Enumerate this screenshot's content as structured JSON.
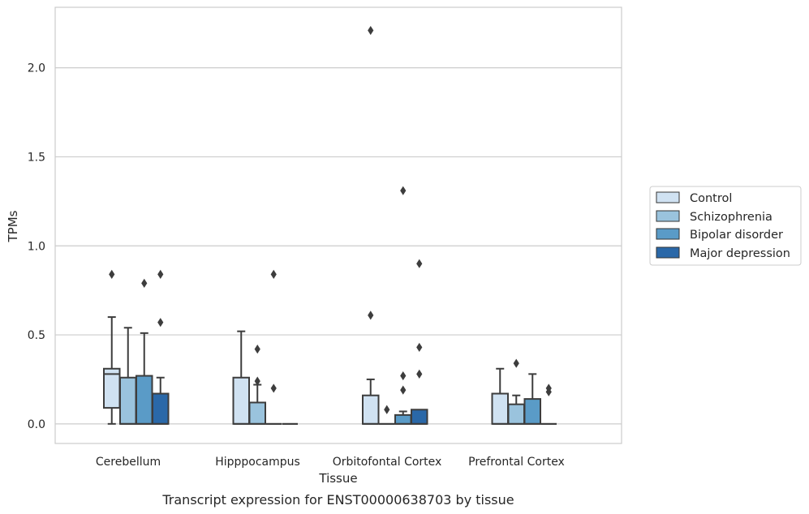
{
  "chart_data": {
    "type": "box",
    "xlabel": "Tissue",
    "ylabel": "TPMs",
    "caption": "Transcript expression for ENST00000638703 by tissue",
    "ylim": [
      -0.11,
      2.34
    ],
    "yticks": [
      0.0,
      0.5,
      1.0,
      1.5,
      2.0
    ],
    "ytick_labels": [
      "0.0",
      "0.5",
      "1.0",
      "1.5",
      "2.0"
    ],
    "grid": "horizontal",
    "legend_position": "right",
    "categories": [
      "Cerebellum",
      "Hipppocampus",
      "Orbitofontal Cortex",
      "Prefrontal Cortex"
    ],
    "series": [
      {
        "name": "Control",
        "color": "#d0e2f2",
        "boxes": [
          {
            "q1": 0.09,
            "median": 0.28,
            "q3": 0.31,
            "whisker_low": 0.0,
            "whisker_high": 0.6,
            "outliers": [
              0.84
            ]
          },
          {
            "q1": 0.0,
            "median": 0.0,
            "q3": 0.26,
            "whisker_low": 0.0,
            "whisker_high": 0.52,
            "outliers": []
          },
          {
            "q1": 0.0,
            "median": 0.0,
            "q3": 0.16,
            "whisker_low": 0.0,
            "whisker_high": 0.25,
            "outliers": [
              0.61,
              2.21
            ]
          },
          {
            "q1": 0.0,
            "median": 0.0,
            "q3": 0.17,
            "whisker_low": 0.0,
            "whisker_high": 0.31,
            "outliers": []
          }
        ]
      },
      {
        "name": "Schizophrenia",
        "color": "#9ac3dd",
        "boxes": [
          {
            "q1": 0.0,
            "median": 0.0,
            "q3": 0.26,
            "whisker_low": 0.0,
            "whisker_high": 0.54,
            "outliers": []
          },
          {
            "q1": 0.0,
            "median": 0.0,
            "q3": 0.12,
            "whisker_low": 0.0,
            "whisker_high": 0.22,
            "outliers": [
              0.24,
              0.42
            ]
          },
          {
            "q1": 0.0,
            "median": 0.0,
            "q3": 0.0,
            "whisker_low": 0.0,
            "whisker_high": 0.0,
            "outliers": [
              0.08
            ]
          },
          {
            "q1": 0.0,
            "median": 0.0,
            "q3": 0.11,
            "whisker_low": 0.0,
            "whisker_high": 0.16,
            "outliers": [
              0.34
            ]
          }
        ]
      },
      {
        "name": "Bipolar disorder",
        "color": "#5a9bc7",
        "boxes": [
          {
            "q1": 0.0,
            "median": 0.0,
            "q3": 0.27,
            "whisker_low": 0.0,
            "whisker_high": 0.51,
            "outliers": [
              0.79
            ]
          },
          {
            "q1": 0.0,
            "median": 0.0,
            "q3": 0.0,
            "whisker_low": 0.0,
            "whisker_high": 0.0,
            "outliers": [
              0.2,
              0.84
            ]
          },
          {
            "q1": 0.0,
            "median": 0.0,
            "q3": 0.05,
            "whisker_low": 0.0,
            "whisker_high": 0.07,
            "outliers": [
              0.19,
              0.27,
              1.31
            ]
          },
          {
            "q1": 0.0,
            "median": 0.0,
            "q3": 0.14,
            "whisker_low": 0.0,
            "whisker_high": 0.28,
            "outliers": []
          }
        ]
      },
      {
        "name": "Major depression",
        "color": "#2a68a8",
        "boxes": [
          {
            "q1": 0.0,
            "median": 0.0,
            "q3": 0.17,
            "whisker_low": 0.0,
            "whisker_high": 0.26,
            "outliers": [
              0.57,
              0.84
            ]
          },
          {
            "q1": 0.0,
            "median": 0.0,
            "q3": 0.0,
            "whisker_low": 0.0,
            "whisker_high": 0.0,
            "outliers": []
          },
          {
            "q1": 0.0,
            "median": 0.0,
            "q3": 0.08,
            "whisker_low": 0.0,
            "whisker_high": 0.08,
            "outliers": [
              0.28,
              0.43,
              0.9
            ]
          },
          {
            "q1": 0.0,
            "median": 0.0,
            "q3": 0.0,
            "whisker_low": 0.0,
            "whisker_high": 0.0,
            "outliers": [
              0.18,
              0.2
            ]
          }
        ]
      }
    ]
  }
}
